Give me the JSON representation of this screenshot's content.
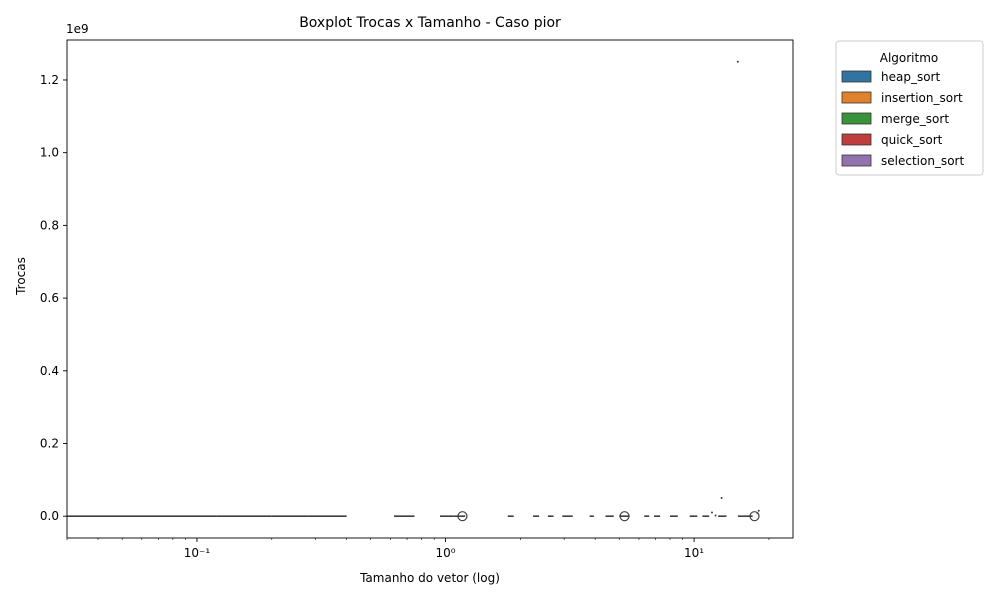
{
  "chart_data": {
    "type": "boxplot",
    "title": "Boxplot Trocas x Tamanho - Caso pior",
    "xlabel": "Tamanho do vetor (log)",
    "ylabel": "Trocas",
    "x_scale": "log",
    "xlim": [
      0.03,
      25
    ],
    "ylim": [
      -60000000,
      1310000000
    ],
    "y_offset_label": "1e9",
    "y_ticks": [
      0,
      200000000,
      400000000,
      600000000,
      800000000,
      1000000000,
      1200000000
    ],
    "y_tick_labels": [
      "0.0",
      "0.2",
      "0.4",
      "0.6",
      "0.8",
      "1.0",
      "1.2"
    ],
    "x_ticks": [
      0.1,
      1,
      10
    ],
    "x_tick_labels": [
      "10⁻¹",
      "10⁰",
      "10¹"
    ],
    "grid": false,
    "legend": {
      "title": "Algoritmo",
      "placement": "outside-top-right",
      "entries": [
        {
          "name": "heap_sort",
          "color": "#3274a1"
        },
        {
          "name": "insertion_sort",
          "color": "#e1812c"
        },
        {
          "name": "merge_sort",
          "color": "#3a923a"
        },
        {
          "name": "quick_sort",
          "color": "#c03d3e"
        },
        {
          "name": "selection_sort",
          "color": "#9372b2"
        }
      ]
    },
    "boxes": [
      {
        "x_from": 0.03,
        "x_to": 0.04,
        "value": 0
      },
      {
        "x_from": 0.04,
        "x_to": 0.12,
        "value": 0
      },
      {
        "x_from": 0.12,
        "x_to": 0.2,
        "value": 0
      },
      {
        "x_from": 0.2,
        "x_to": 0.28,
        "value": 0
      },
      {
        "x_from": 0.28,
        "x_to": 0.4,
        "value": 0
      },
      {
        "x_from": 0.62,
        "x_to": 0.75,
        "value": 0
      },
      {
        "x_from": 0.95,
        "x_to": 1.08,
        "value": 0
      },
      {
        "x_from": 1.08,
        "x_to": 1.2,
        "value": 0
      },
      {
        "x_from": 1.78,
        "x_to": 1.88,
        "value": 0
      },
      {
        "x_from": 2.25,
        "x_to": 2.38,
        "value": 0
      },
      {
        "x_from": 2.58,
        "x_to": 2.72,
        "value": 0
      },
      {
        "x_from": 2.95,
        "x_to": 3.25,
        "value": 0
      },
      {
        "x_from": 3.8,
        "x_to": 3.95,
        "value": 0
      },
      {
        "x_from": 4.4,
        "x_to": 4.75,
        "value": 0
      },
      {
        "x_from": 5.0,
        "x_to": 5.5,
        "value": 0
      },
      {
        "x_from": 6.3,
        "x_to": 6.6,
        "value": 0
      },
      {
        "x_from": 6.9,
        "x_to": 7.3,
        "value": 0
      },
      {
        "x_from": 8.0,
        "x_to": 8.6,
        "value": 0
      },
      {
        "x_from": 9.6,
        "x_to": 10.3,
        "value": 0
      },
      {
        "x_from": 10.8,
        "x_to": 11.5,
        "value": 0
      },
      {
        "x_from": 12.5,
        "x_to": 13.5,
        "value": 0
      },
      {
        "x_from": 15.0,
        "x_to": 17.2,
        "value": 0
      }
    ],
    "outliers": [
      {
        "x": 1.17,
        "y": 0,
        "style": "circle"
      },
      {
        "x": 5.25,
        "y": 0,
        "style": "circle"
      },
      {
        "x": 17.5,
        "y": 0,
        "style": "circle"
      },
      {
        "x": 15.0,
        "y": 1250000000,
        "style": "dot"
      },
      {
        "x": 12.9,
        "y": 50000000,
        "style": "dot"
      },
      {
        "x": 11.8,
        "y": 10000000,
        "style": "dot"
      },
      {
        "x": 18.2,
        "y": 15000000,
        "style": "dot"
      },
      {
        "x": 18.0,
        "y": 8000000,
        "style": "dot"
      },
      {
        "x": 12.2,
        "y": 2000000,
        "style": "dot"
      }
    ]
  }
}
